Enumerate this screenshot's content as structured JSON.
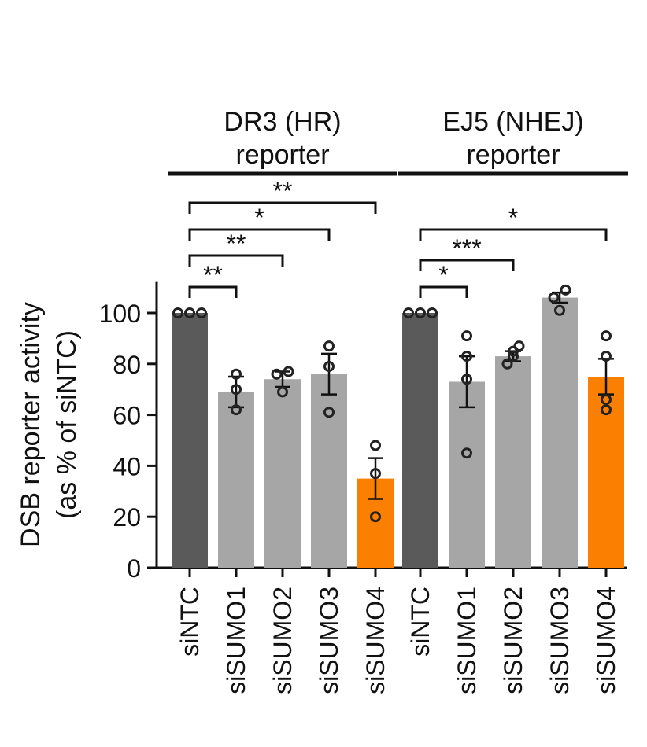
{
  "chart_data": {
    "type": "bar",
    "ylabel_line1": "DSB reporter activity",
    "ylabel_line2": "(as % of siNTC)",
    "ylim": [
      0,
      110
    ],
    "yticks": [
      0,
      20,
      40,
      60,
      80,
      100
    ],
    "colors": {
      "control": "#5a5a5a",
      "sumo": "#a6a6a7",
      "highlight": "#fb7f00"
    },
    "groups": [
      {
        "title_line1": "DR3 (HR)",
        "title_line2": "reporter",
        "bars": [
          {
            "label": "siNTC",
            "value": 100,
            "sem": 0,
            "points": [
              100,
              100,
              100
            ],
            "color": "control"
          },
          {
            "label": "siSUMO1",
            "value": 69,
            "sem": 6,
            "points": [
              62,
              70,
              76
            ],
            "color": "sumo"
          },
          {
            "label": "siSUMO2",
            "value": 74,
            "sem": 3,
            "points": [
              69,
              76,
              77
            ],
            "color": "sumo"
          },
          {
            "label": "siSUMO3",
            "value": 76,
            "sem": 8,
            "points": [
              61,
              79,
              87
            ],
            "color": "sumo"
          },
          {
            "label": "siSUMO4",
            "value": 35,
            "sem": 8,
            "points": [
              20,
              37,
              48
            ],
            "color": "highlight"
          }
        ],
        "comparisons": [
          {
            "from": 0,
            "to": 1,
            "label": "**"
          },
          {
            "from": 0,
            "to": 2,
            "label": "**"
          },
          {
            "from": 0,
            "to": 3,
            "label": "*"
          },
          {
            "from": 0,
            "to": 4,
            "label": "**"
          }
        ]
      },
      {
        "title_line1": "EJ5 (NHEJ)",
        "title_line2": "reporter",
        "bars": [
          {
            "label": "siNTC",
            "value": 100,
            "sem": 0,
            "points": [
              100,
              100,
              100
            ],
            "color": "control"
          },
          {
            "label": "siSUMO1",
            "value": 73,
            "sem": 10,
            "points": [
              45,
              74,
              83,
              91
            ],
            "color": "sumo"
          },
          {
            "label": "siSUMO2",
            "value": 83,
            "sem": 2,
            "points": [
              80,
              83,
              85,
              87
            ],
            "color": "sumo"
          },
          {
            "label": "siSUMO3",
            "value": 106,
            "sem": 2,
            "points": [
              101,
              106,
              109
            ],
            "color": "sumo"
          },
          {
            "label": "siSUMO4",
            "value": 75,
            "sem": 7,
            "points": [
              62,
              66,
              83,
              91
            ],
            "color": "highlight"
          }
        ],
        "comparisons": [
          {
            "from": 0,
            "to": 1,
            "label": "*"
          },
          {
            "from": 0,
            "to": 2,
            "label": "***"
          },
          {
            "from": 0,
            "to": 4,
            "label": "*"
          }
        ]
      }
    ]
  }
}
